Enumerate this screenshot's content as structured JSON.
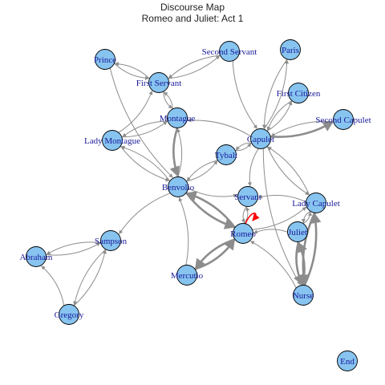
{
  "title": "Discourse Map",
  "subtitle": "Romeo and Juliet: Act 1",
  "colors": {
    "node_fill": "#87c4f0",
    "node_stroke": "#000000",
    "edge": "#8c8c8c",
    "highlight": "#ff0000",
    "label": "#1a1a9a"
  },
  "nodes": [
    {
      "id": "Prince",
      "label": "Prince"
    },
    {
      "id": "Second Servant",
      "label": "Second Servant"
    },
    {
      "id": "Paris",
      "label": "Paris"
    },
    {
      "id": "First Servant",
      "label": "First Servant"
    },
    {
      "id": "First Citizen",
      "label": "First Citizen"
    },
    {
      "id": "Montague",
      "label": "Montague"
    },
    {
      "id": "Second Capulet",
      "label": "Second Capulet"
    },
    {
      "id": "Lady Montague",
      "label": "Lady Montague"
    },
    {
      "id": "Capulet",
      "label": "Capulet"
    },
    {
      "id": "Tybalt",
      "label": "Tybalt"
    },
    {
      "id": "Benvolio",
      "label": "Benvolio"
    },
    {
      "id": "Servant",
      "label": "Servant"
    },
    {
      "id": "Lady Capulet",
      "label": "Lady Capulet"
    },
    {
      "id": "Romeo",
      "label": "Romeo"
    },
    {
      "id": "Juliet",
      "label": "Juliet"
    },
    {
      "id": "Sampson",
      "label": "Sampson"
    },
    {
      "id": "Abraham",
      "label": "Abraham"
    },
    {
      "id": "Mercutio",
      "label": "Mercutio"
    },
    {
      "id": "Nurse",
      "label": "Nurse"
    },
    {
      "id": "Gregory",
      "label": "Gregory"
    },
    {
      "id": "End",
      "label": "End"
    }
  ],
  "edges": [
    {
      "from": "Prince",
      "to": "First Servant"
    },
    {
      "from": "Prince",
      "to": "Benvolio"
    },
    {
      "from": "First Servant",
      "to": "Prince"
    },
    {
      "from": "First Servant",
      "to": "Second Servant"
    },
    {
      "from": "Second Servant",
      "to": "First Servant"
    },
    {
      "from": "Second Servant",
      "to": "Capulet"
    },
    {
      "from": "First Servant",
      "to": "Montague"
    },
    {
      "from": "Montague",
      "to": "First Servant"
    },
    {
      "from": "Montague",
      "to": "Benvolio"
    },
    {
      "from": "Benvolio",
      "to": "Montague"
    },
    {
      "from": "Montague",
      "to": "Lady Montague"
    },
    {
      "from": "Lady Montague",
      "to": "Montague"
    },
    {
      "from": "Lady Montague",
      "to": "Benvolio"
    },
    {
      "from": "Benvolio",
      "to": "Lady Montague"
    },
    {
      "from": "Lady Montague",
      "to": "First Servant"
    },
    {
      "from": "Capulet",
      "to": "Montague"
    },
    {
      "from": "Paris",
      "to": "Capulet"
    },
    {
      "from": "Capulet",
      "to": "Paris"
    },
    {
      "from": "First Citizen",
      "to": "Capulet"
    },
    {
      "from": "Capulet",
      "to": "First Citizen"
    },
    {
      "from": "Second Capulet",
      "to": "Capulet"
    },
    {
      "from": "Capulet",
      "to": "Second Capulet"
    },
    {
      "from": "Capulet",
      "to": "Tybalt"
    },
    {
      "from": "Tybalt",
      "to": "Capulet"
    },
    {
      "from": "Tybalt",
      "to": "Benvolio"
    },
    {
      "from": "Benvolio",
      "to": "Tybalt"
    },
    {
      "from": "Capulet",
      "to": "Servant"
    },
    {
      "from": "Capulet",
      "to": "Lady Capulet"
    },
    {
      "from": "Lady Capulet",
      "to": "Capulet"
    },
    {
      "from": "Capulet",
      "to": "Nurse"
    },
    {
      "from": "Servant",
      "to": "Romeo"
    },
    {
      "from": "Romeo",
      "to": "Servant"
    },
    {
      "from": "Benvolio",
      "to": "Romeo"
    },
    {
      "from": "Romeo",
      "to": "Benvolio"
    },
    {
      "from": "Benvolio",
      "to": "Servant"
    },
    {
      "from": "Mercutio",
      "to": "Romeo"
    },
    {
      "from": "Romeo",
      "to": "Mercutio"
    },
    {
      "from": "Mercutio",
      "to": "Benvolio"
    },
    {
      "from": "Lady Capulet",
      "to": "Juliet"
    },
    {
      "from": "Juliet",
      "to": "Lady Capulet"
    },
    {
      "from": "Lady Capulet",
      "to": "Nurse"
    },
    {
      "from": "Nurse",
      "to": "Lady Capulet"
    },
    {
      "from": "Juliet",
      "to": "Nurse"
    },
    {
      "from": "Nurse",
      "to": "Juliet"
    },
    {
      "from": "Nurse",
      "to": "Romeo"
    },
    {
      "from": "Juliet",
      "to": "Romeo"
    },
    {
      "from": "Romeo",
      "to": "Lady Capulet"
    },
    {
      "from": "Lady Capulet",
      "to": "Servant"
    },
    {
      "from": "Benvolio",
      "to": "Sampson"
    },
    {
      "from": "Sampson",
      "to": "Abraham"
    },
    {
      "from": "Abraham",
      "to": "Sampson"
    },
    {
      "from": "Sampson",
      "to": "Gregory"
    },
    {
      "from": "Gregory",
      "to": "Sampson"
    },
    {
      "from": "Gregory",
      "to": "Abraham"
    },
    {
      "from": "Romeo",
      "to": "Romeo",
      "highlight": true
    }
  ]
}
